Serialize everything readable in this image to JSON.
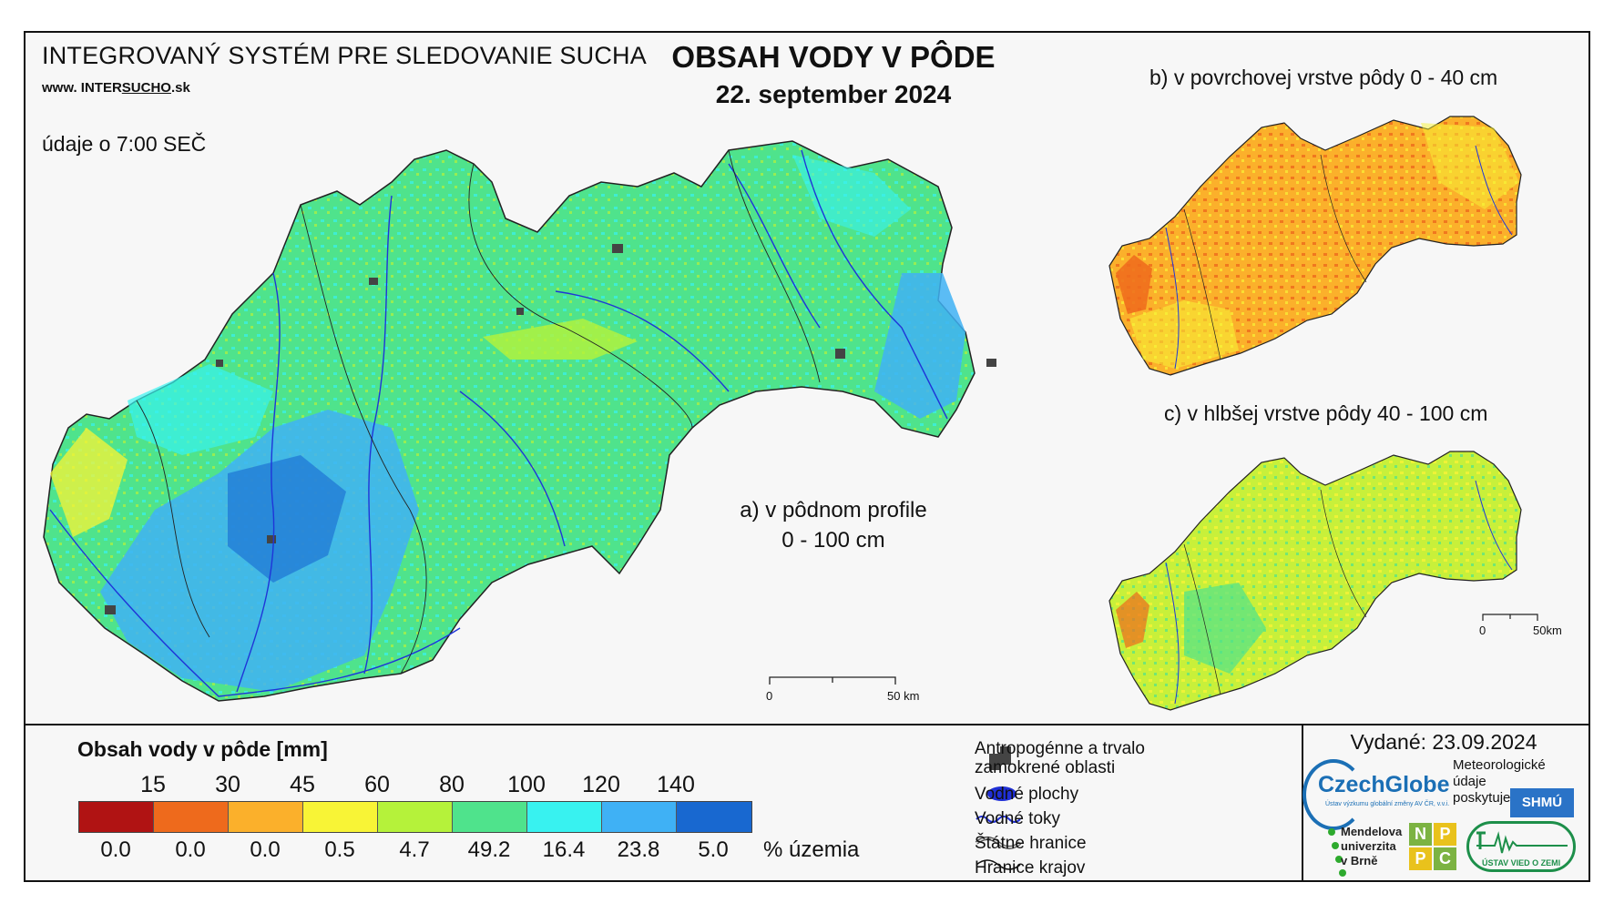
{
  "header": {
    "system_title": "INTEGROVANÝ SYSTÉM PRE SLEDOVANIE SUCHA",
    "website_prefix": "www. INTER",
    "website_mid": "SUCHO",
    "website_suffix": ".sk",
    "data_time": "údaje o 7:00 SEČ",
    "title": "OBSAH VODY V PÔDE",
    "date": "22. september 2024"
  },
  "maps": {
    "a_label_line1": "a) v pôdnom profile",
    "a_label_line2": "0 - 100 cm",
    "b_label": "b) v povrchovej vrstve pôdy 0 - 40 cm",
    "c_label": "c) v hlbšej vrstve pôdy 40 - 100 cm",
    "scale_main": {
      "start": "0",
      "end": "50 km"
    },
    "scale_small": {
      "start": "0",
      "end": "50km"
    }
  },
  "legend": {
    "title": "Obsah vody v pôde  [mm]",
    "thresholds": [
      "15",
      "30",
      "45",
      "60",
      "80",
      "100",
      "120",
      "140"
    ],
    "colors": [
      "#b01313",
      "#ee6a1c",
      "#fbb02b",
      "#f8f436",
      "#b5f23a",
      "#4fe38c",
      "#38f2f0",
      "#3fb1f5",
      "#1868d0"
    ],
    "percentages": [
      "0.0",
      "0.0",
      "0.0",
      "0.5",
      "4.7",
      "49.2",
      "16.4",
      "23.8",
      "5.0"
    ],
    "percent_unit": "% územia"
  },
  "symbols": {
    "anthropogenic_line1": "Antropogénne a trvalo",
    "anthropogenic_line2": "zamokrené oblasti",
    "water_bodies": "Vodné plochy",
    "water_streams": "Vodné toky",
    "state_border": "Štátne hranice",
    "region_border": "Hranice krajov"
  },
  "footer": {
    "issued": "Vydané: 23.09.2024",
    "czechglobe": "CzechGlobe",
    "czechglobe_sub": "Ústav výzkumu globální změny AV ČR, v.v.i.",
    "meteo_line1": "Meteorologické",
    "meteo_line2": "údaje",
    "meteo_line3": "poskytuje:",
    "shmu": "SHMÚ",
    "mendel_line1": "Mendelova",
    "mendel_line2": "univerzita",
    "mendel_line3": "v Brně",
    "nppc": [
      "N",
      "P",
      "P",
      "C"
    ],
    "uvz": "ÚSTAV VIED O ZEMI"
  }
}
